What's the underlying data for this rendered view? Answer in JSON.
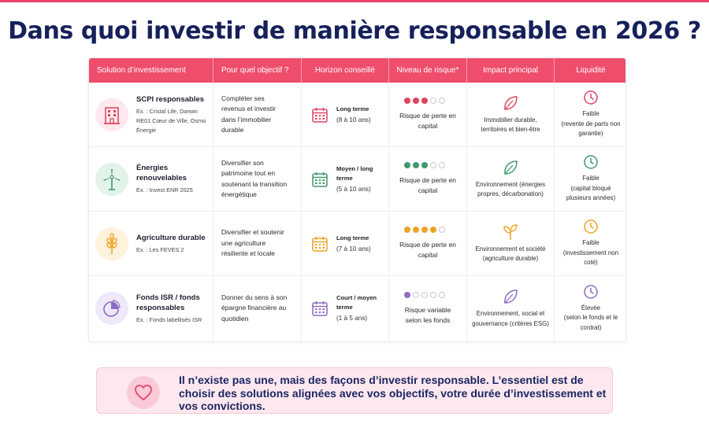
{
  "title": "Dans quoi investir de manière responsable en 2026 ?",
  "table": {
    "headers": [
      "Solution d’investissement",
      "Pour quel objectif ?",
      "Horizon conseillé",
      "Niveau de risque*",
      "Impact principal",
      "Liquidité"
    ],
    "rows": [
      {
        "name": "SCPI responsables",
        "example": "Ex. : Cristal Life, Darwin RE01 Cœur de Ville, Osmo Énergie",
        "icon": "building-icon",
        "objective": "Compléter ses revenus et investir dans l’immobilier durable",
        "horizon_main": "Long terme",
        "horizon_sub": "(8 à 10 ans)",
        "risk_level": 3,
        "risk_text": "Risque de perte en capital",
        "impact_icon": "leaf-icon",
        "impact": "Immobilier durable, territoires et bien-être",
        "liquidity_main": "Faible",
        "liquidity_detail": "(revente de parts non garantie)",
        "color": "#e0435f",
        "tint": "#fde8ed"
      },
      {
        "name": "Énergies renouvelables",
        "example": "Ex. : Invest ENR 2025",
        "icon": "wind-turbine-icon",
        "objective": "Diversifier son patrimoine tout en soutenant la transition énergétique",
        "horizon_main": "Moyen / long terme",
        "horizon_sub": "(5 à 10 ans)",
        "risk_level": 3,
        "risk_text": "Risque de perte en capital",
        "impact_icon": "leaf-icon",
        "impact": "Environnement (énergies propres, décarbonation)",
        "liquidity_main": "Faible",
        "liquidity_detail": "(capital bloqué plusieurs années)",
        "color": "#3f9a6b",
        "tint": "#e3f3e9"
      },
      {
        "name": "Agriculture durable",
        "example": "Ex. : Les FEVES 2",
        "icon": "wheat-icon",
        "objective": "Diversifier et soutenir une agriculture résiliente et locale",
        "horizon_main": "Long terme",
        "horizon_sub": "(7 à 10 ans)",
        "risk_level": 4,
        "risk_text": "Risque de perte en capital",
        "impact_icon": "sprout-icon",
        "impact": "Environnement et société (agriculture durable)",
        "liquidity_main": "Faible",
        "liquidity_detail": "(investissement non coté)",
        "color": "#eea427",
        "tint": "#fdf2dc"
      },
      {
        "name": "Fonds ISR / fonds responsables",
        "example": "Ex. : Fonds labellisés ISR",
        "icon": "pie-chart-icon",
        "objective": "Donner du sens à son épargne financière au quotidien",
        "horizon_main": "Court / moyen terme",
        "horizon_sub": "(1 à 5 ans)",
        "risk_level": 1,
        "risk_text": "Risque variable selon les fonds",
        "impact_icon": "leaf-icon",
        "impact": "Environnement, social et gouvernance (critères ESG)",
        "liquidity_main": "Élevée",
        "liquidity_detail": "(selon le fonds et le contrat)",
        "color": "#8d6cc4",
        "tint": "#eee8f8"
      }
    ]
  },
  "footer": {
    "icon": "heart-icon",
    "text": "Il n’existe pas une, mais des façons d’investir responsable. L’essentiel est de choisir des solutions alignées avec vos objectifs, votre durée d’investissement et vos convictions."
  }
}
